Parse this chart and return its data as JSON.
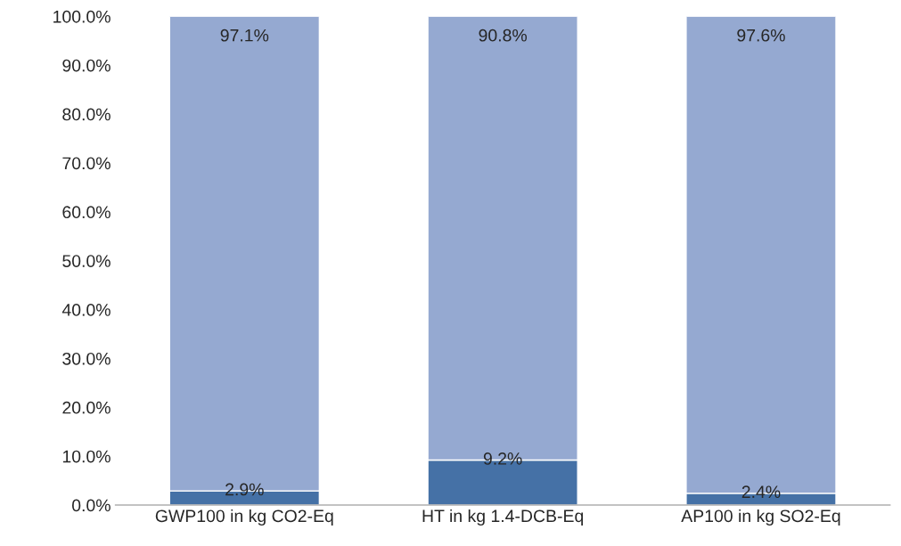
{
  "chart_data": {
    "type": "bar",
    "stacked": true,
    "categories": [
      "GWP100 in kg CO2-Eq",
      "HT in kg 1.4-DCB-Eq",
      "AP100 in kg SO2-Eq"
    ],
    "series": [
      {
        "color": "#4571a6",
        "values": [
          2.9,
          9.2,
          2.4
        ],
        "value_labels": [
          "2.9%",
          "9.2%",
          "2.4%"
        ]
      },
      {
        "color": "#95a9d1",
        "values": [
          97.1,
          90.8,
          97.6
        ],
        "value_labels": [
          "97.1%",
          "90.8%",
          "97.6%"
        ]
      }
    ],
    "ylim": [
      0,
      100
    ],
    "yticks": [
      {
        "value": 0,
        "label": "0.0%"
      },
      {
        "value": 10,
        "label": "10.0%"
      },
      {
        "value": 20,
        "label": "20.0%"
      },
      {
        "value": 30,
        "label": "30.0%"
      },
      {
        "value": 40,
        "label": "40.0%"
      },
      {
        "value": 50,
        "label": "50.0%"
      },
      {
        "value": 60,
        "label": "60.0%"
      },
      {
        "value": 70,
        "label": "70.0%"
      },
      {
        "value": 80,
        "label": "80.0%"
      },
      {
        "value": 90,
        "label": "90.0%"
      },
      {
        "value": 100,
        "label": "100.0%"
      }
    ],
    "grid": false,
    "legend": false
  }
}
